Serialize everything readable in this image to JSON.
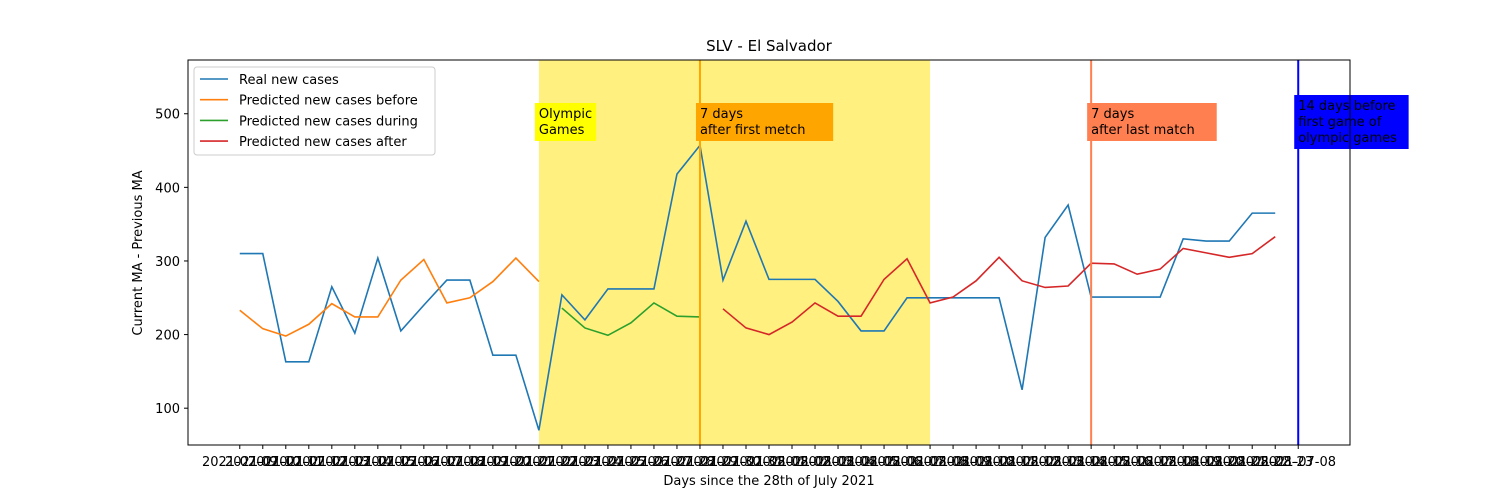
{
  "chart_data": {
    "type": "line",
    "title": "SLV - El Salvador",
    "x_label": "Days since the 28th of July 2021",
    "y_label": "Current MA - Previous MA",
    "categories": [
      "2021-07-09",
      "2021-07-10",
      "2021-07-11",
      "2021-07-12",
      "2021-07-13",
      "2021-07-14",
      "2021-07-15",
      "2021-07-16",
      "2021-07-17",
      "2021-07-18",
      "2021-07-19",
      "2021-07-20",
      "2021-07-21",
      "2021-07-22",
      "2021-07-23",
      "2021-07-24",
      "2021-07-25",
      "2021-07-26",
      "2021-07-27",
      "2021-07-28",
      "2021-07-29",
      "2021-07-30",
      "2021-07-31",
      "2021-08-01",
      "2021-08-02",
      "2021-08-03",
      "2021-08-04",
      "2021-08-05",
      "2021-08-06",
      "2021-08-07",
      "2021-08-08",
      "2021-08-09",
      "2021-08-10",
      "2021-08-11",
      "2021-08-12",
      "2021-08-13",
      "2021-08-14",
      "2021-08-15",
      "2021-08-16",
      "2021-08-17",
      "2021-08-18",
      "2021-08-19",
      "2021-08-20",
      "2021-08-21",
      "2021-08-22",
      "2021-08-23",
      "2021-07-08"
    ],
    "series": [
      {
        "name": "Real new cases",
        "color": "#1f77b4",
        "values": [
          310,
          310,
          163,
          163,
          265,
          202,
          304,
          205,
          240,
          274,
          274,
          172,
          172,
          70,
          254,
          220,
          262,
          262,
          262,
          418,
          457,
          274,
          354,
          275,
          275,
          275,
          245,
          205,
          205,
          250,
          250,
          250,
          250,
          250,
          125,
          332,
          376,
          251,
          251,
          251,
          251,
          330,
          327,
          327,
          365,
          365,
          null
        ]
      },
      {
        "name": "Predicted new cases before",
        "color": "#ff7f0e",
        "values": [
          233,
          208,
          198,
          214,
          242,
          224,
          224,
          274,
          302,
          243,
          250,
          272,
          304,
          272,
          null,
          null,
          null,
          null,
          null,
          null,
          null,
          null,
          null,
          null,
          null,
          null,
          null,
          null,
          null,
          null,
          null,
          null,
          null,
          null,
          null,
          null,
          null,
          null,
          null,
          null,
          null,
          null,
          null,
          null,
          null,
          null,
          null
        ]
      },
      {
        "name": "Predicted new cases during",
        "color": "#2ca02c",
        "values": [
          null,
          null,
          null,
          null,
          null,
          null,
          null,
          null,
          null,
          null,
          null,
          null,
          null,
          null,
          236,
          209,
          199,
          216,
          243,
          225,
          224,
          null,
          null,
          null,
          null,
          null,
          null,
          null,
          null,
          null,
          null,
          null,
          null,
          null,
          null,
          null,
          null,
          null,
          null,
          null,
          null,
          null,
          null,
          null,
          null,
          null,
          null
        ]
      },
      {
        "name": "Predicted new cases after",
        "color": "#d62728",
        "values": [
          null,
          null,
          null,
          null,
          null,
          null,
          null,
          null,
          null,
          null,
          null,
          null,
          null,
          null,
          null,
          null,
          null,
          null,
          null,
          null,
          null,
          235,
          209,
          200,
          217,
          243,
          225,
          225,
          275,
          303,
          243,
          251,
          273,
          305,
          273,
          264,
          266,
          297,
          296,
          282,
          289,
          317,
          311,
          305,
          310,
          333,
          null
        ]
      }
    ],
    "ylim": [
      50,
      573
    ],
    "yticks": [
      100,
      200,
      300,
      400,
      500
    ],
    "legend": "upper left",
    "span": {
      "start": "2021-07-22",
      "end": "2021-08-08",
      "color": "#fff080"
    },
    "vlines": [
      {
        "x": "2021-07-29",
        "color": "#ffa500",
        "lines": [
          "7 days",
          "after first metch"
        ],
        "box": "#ffa500",
        "text_color": "#000000"
      },
      {
        "x": "2021-08-15",
        "color": "#ff7f50",
        "lines": [
          "7 days",
          "after last match"
        ],
        "box": "#ff7f50",
        "text_color": "#000000"
      },
      {
        "x": "2021-07-08",
        "color": "#0000ff",
        "lines": [
          "14 days before",
          "first game of",
          "olympic games"
        ],
        "box": "#0000ff",
        "text_color": "#ffffff"
      }
    ],
    "span_label": {
      "lines": [
        "Olympic",
        "Games"
      ],
      "box": "#ffff00",
      "text_color": "#000000"
    }
  }
}
